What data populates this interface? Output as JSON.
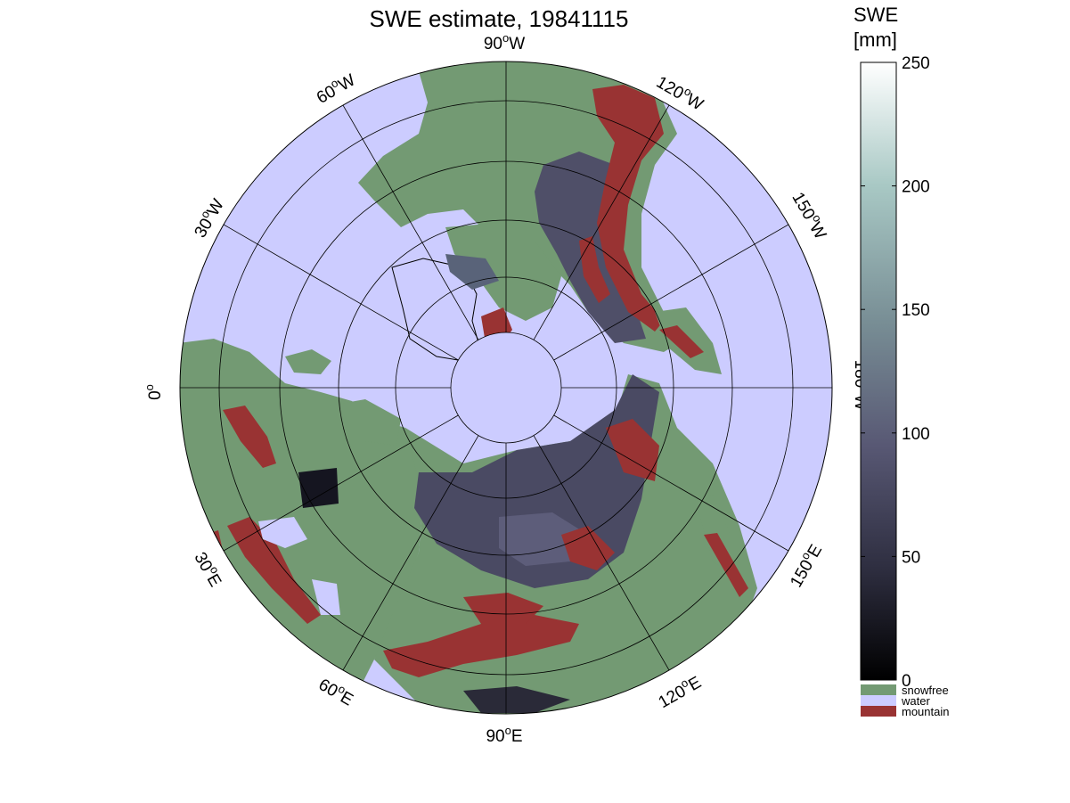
{
  "title": "SWE estimate, 19841115",
  "map": {
    "projection": "north polar stereographic",
    "longitude_labels": {
      "lon_90W": {
        "deg": "90",
        "dir": "W"
      },
      "lon_60W": {
        "deg": "60",
        "dir": "W"
      },
      "lon_120W": {
        "deg": "120",
        "dir": "W"
      },
      "lon_30W": {
        "deg": "30",
        "dir": "W"
      },
      "lon_150W": {
        "deg": "150",
        "dir": "W"
      },
      "lon_0": {
        "deg": "0",
        "dir": ""
      },
      "lon_180W": {
        "deg": "180",
        "dir": "W"
      },
      "lon_30E": {
        "deg": "30",
        "dir": "E"
      },
      "lon_150E": {
        "deg": "150",
        "dir": "E"
      },
      "lon_60E": {
        "deg": "60",
        "dir": "E"
      },
      "lon_120E": {
        "deg": "120",
        "dir": "E"
      },
      "lon_90E": {
        "deg": "90",
        "dir": "E"
      }
    },
    "colors": {
      "water": "#ccccff",
      "snowfree": "#739a73",
      "mountain": "#993333",
      "snow": "#4c4c66",
      "grid": "#000000"
    }
  },
  "colorbar": {
    "title_line1": "SWE",
    "title_line2": "[mm]",
    "min": 0,
    "max": 250,
    "ticks": [
      "0",
      "50",
      "100",
      "150",
      "200",
      "250"
    ],
    "legend": [
      {
        "label": "snowfree",
        "color": "#739a73"
      },
      {
        "label": "water",
        "color": "#ccccff"
      },
      {
        "label": "mountain",
        "color": "#993333"
      }
    ]
  }
}
